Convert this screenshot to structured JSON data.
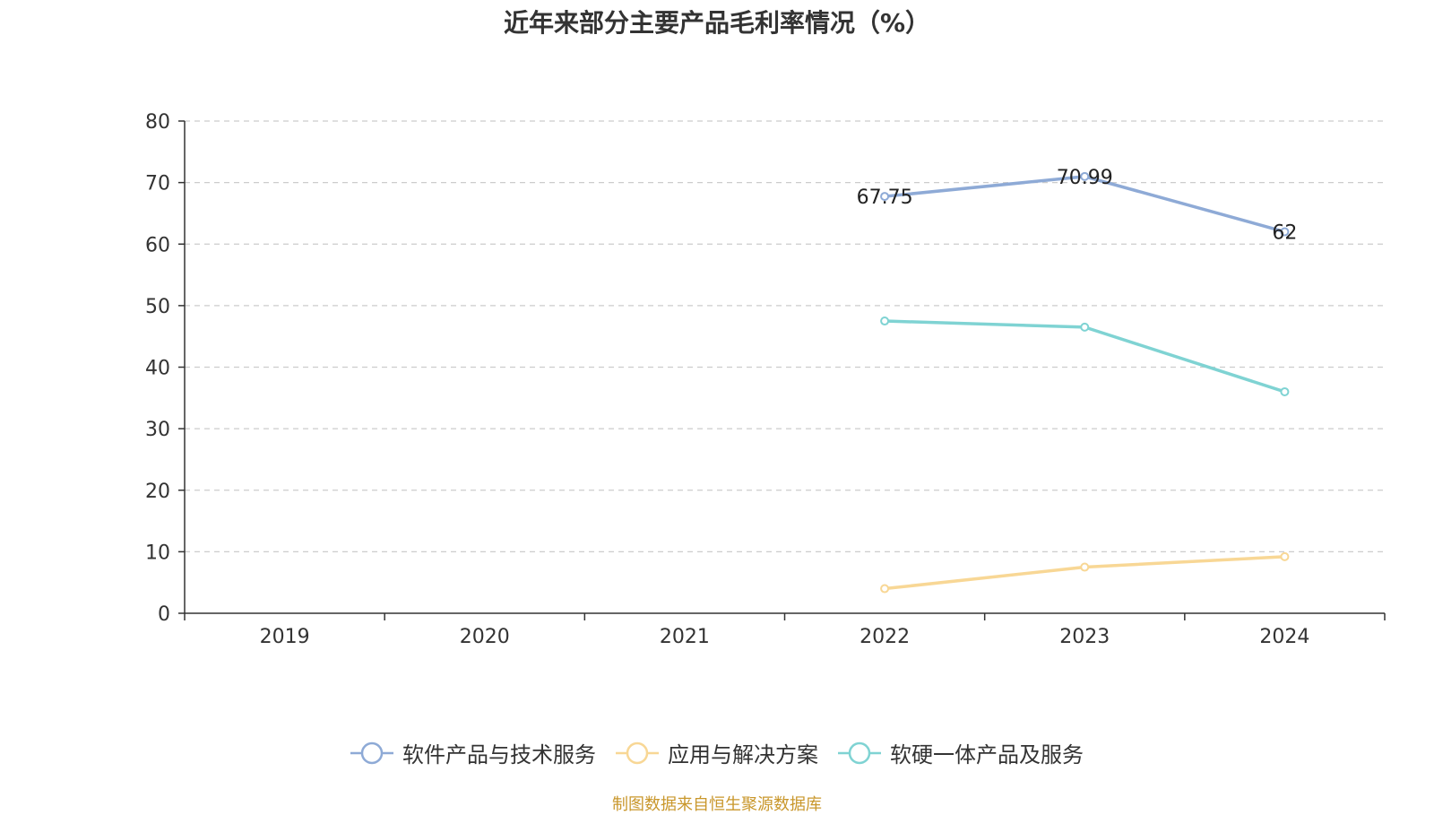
{
  "chart_data": {
    "type": "line",
    "title": "近年来部分主要产品毛利率情况（%）",
    "categories": [
      "2019",
      "2020",
      "2021",
      "2022",
      "2023",
      "2024"
    ],
    "ylim": [
      0,
      80
    ],
    "yticks": [
      0,
      10,
      20,
      30,
      40,
      50,
      60,
      70,
      80
    ],
    "grid": true,
    "legend_position": "bottom",
    "series": [
      {
        "name": "软件产品与技术服务",
        "color": "#8eaad6",
        "values": [
          null,
          null,
          null,
          67.75,
          70.99,
          62
        ],
        "labels": [
          null,
          null,
          null,
          "67.75",
          "70.99",
          "62"
        ]
      },
      {
        "name": "应用与解决方案",
        "color": "#f8d795",
        "values": [
          null,
          null,
          null,
          4,
          7.5,
          9.2
        ],
        "labels": [
          null,
          null,
          null,
          null,
          null,
          null
        ]
      },
      {
        "name": "软硬一体产品及服务",
        "color": "#7fd3d3",
        "values": [
          null,
          null,
          null,
          47.5,
          46.5,
          36
        ],
        "labels": [
          null,
          null,
          null,
          null,
          null,
          null
        ]
      }
    ],
    "source": "制图数据来自恒生聚源数据库"
  }
}
